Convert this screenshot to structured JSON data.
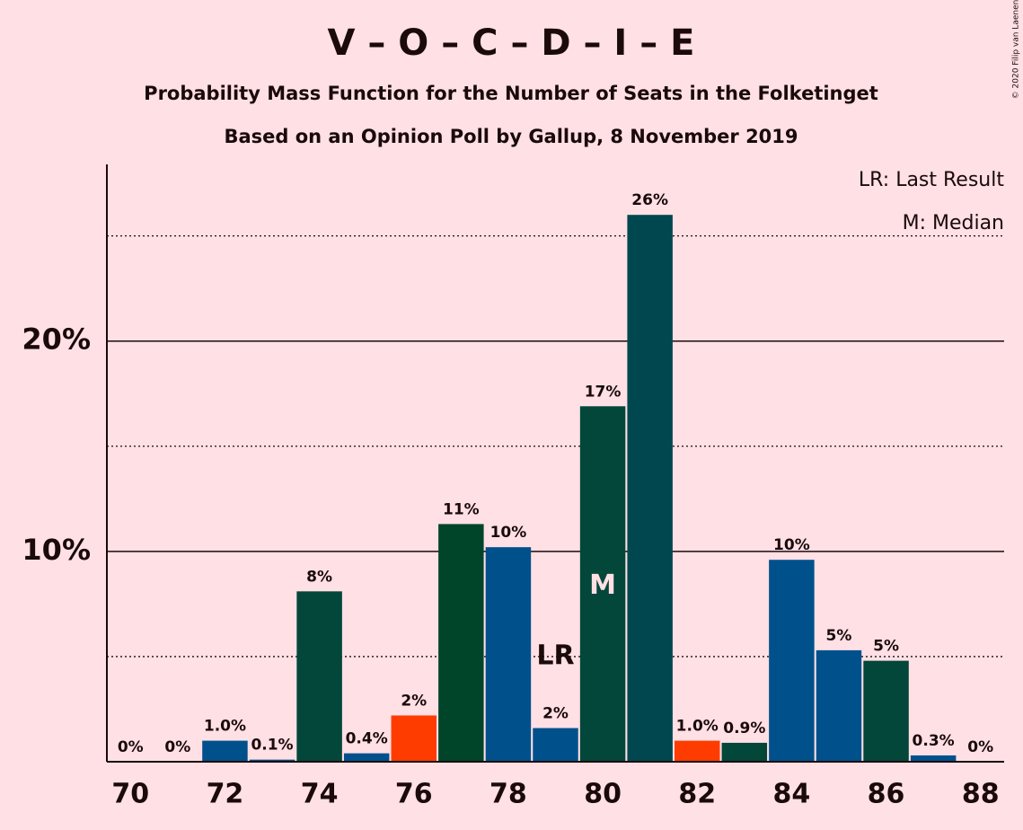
{
  "chart_data": {
    "type": "bar",
    "title": "V – O – C – D – I – E",
    "subtitle": "Probability Mass Function for the Number of Seats in the Folketinget",
    "subtitle2": "Based on an Opinion Poll by Gallup, 8 November 2019",
    "copyright": "© 2020 Filip van Laenen",
    "x": [
      70,
      71,
      72,
      73,
      74,
      75,
      76,
      77,
      78,
      79,
      80,
      81,
      82,
      83,
      84,
      85,
      86,
      87,
      88
    ],
    "values": [
      0,
      0,
      1.0,
      0.1,
      8.1,
      0.4,
      2.2,
      11.3,
      10.2,
      1.6,
      16.9,
      26.0,
      1.0,
      0.9,
      9.6,
      5.3,
      4.8,
      0.3,
      0
    ],
    "value_labels": [
      "0%",
      "0%",
      "1.0%",
      "0.1%",
      "8%",
      "0.4%",
      "2%",
      "11%",
      "10%",
      "2%",
      "17%",
      "26%",
      "1.0%",
      "0.9%",
      "10%",
      "5%",
      "5%",
      "0.3%",
      "0%"
    ],
    "colors": [
      "#00508c",
      "#00508c",
      "#00508c",
      "#00508c",
      "#03463a",
      "#00508c",
      "#ff3c00",
      "#00452a",
      "#00508c",
      "#00508c",
      "#03463a",
      "#004750",
      "#ff3c00",
      "#03463a",
      "#00508c",
      "#00508c",
      "#03463a",
      "#00508c",
      "#00508c"
    ],
    "xlim": [
      69.5,
      88.5
    ],
    "xticks": [
      70,
      72,
      74,
      76,
      78,
      80,
      82,
      84,
      86,
      88
    ],
    "ylim": [
      0,
      28.4
    ],
    "yticks": [
      {
        "value": 10,
        "label": "10%"
      },
      {
        "value": 20,
        "label": "20%"
      }
    ],
    "minor_yticks": [
      5,
      15,
      25
    ],
    "grid": true,
    "annotations": [
      {
        "text": "LR",
        "x": 79
      },
      {
        "text": "M",
        "x": 80
      }
    ],
    "legend": [
      "LR: Last Result",
      "M: Median"
    ]
  }
}
